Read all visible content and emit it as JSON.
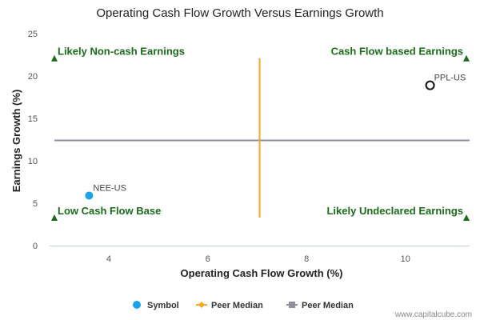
{
  "chart_data": {
    "type": "scatter",
    "title": "Operating Cash Flow Growth Versus Earnings Growth",
    "xlabel": "Operating Cash Flow Growth (%)",
    "ylabel": "Earnings Growth (%)",
    "xlim": [
      2.8,
      11.3
    ],
    "ylim": [
      0,
      25
    ],
    "xticks": [
      4,
      6,
      8,
      10
    ],
    "yticks": [
      0,
      5,
      10,
      15,
      20,
      25
    ],
    "points": [
      {
        "name": "NEE-US",
        "x": 3.6,
        "y": 5.9,
        "style": "filled"
      },
      {
        "name": "PPL-US",
        "x": 10.5,
        "y": 18.9,
        "style": "hollow"
      }
    ],
    "peer_median_x": {
      "value": 7.05,
      "y_range": [
        3.3,
        22.1
      ]
    },
    "peer_median_y": {
      "value": 12.4
    },
    "quadrants": [
      {
        "label": "Likely Non-cash Earnings",
        "position": "top-left"
      },
      {
        "label": "Cash Flow based Earnings",
        "position": "top-right"
      },
      {
        "label": "Low Cash Flow Base",
        "position": "bottom-left"
      },
      {
        "label": "Likely Undeclared Earnings",
        "position": "bottom-right"
      }
    ],
    "quadrant_marker_y": {
      "top": 22.1,
      "bottom": 3.3
    },
    "legend": [
      {
        "label": "Symbol",
        "kind": "symbol"
      },
      {
        "label": "Peer Median",
        "kind": "vertical-median"
      },
      {
        "label": "Peer Median",
        "kind": "horizontal-median"
      }
    ],
    "legend_position": "bottom-center"
  },
  "colors": {
    "symbol": "#1aa3e8",
    "vertical_median": "#f5a623",
    "horizontal_median": "#8e8e9c",
    "quadrant": "#1a6b1a",
    "axis": "#c0d0e0"
  },
  "credit": "www.capitalcube.com"
}
